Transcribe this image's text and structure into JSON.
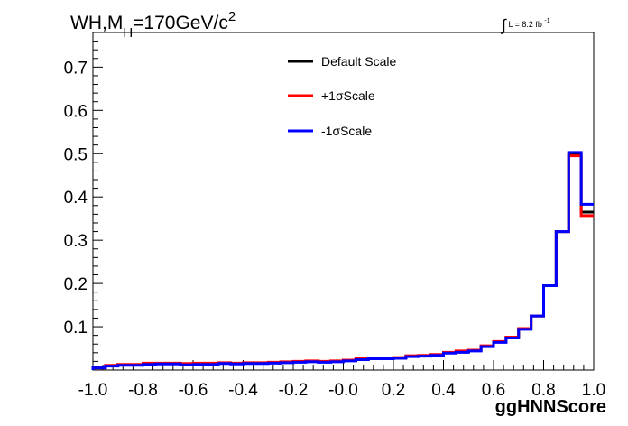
{
  "chart_data": {
    "type": "line",
    "title_parts": {
      "a": "WH,M",
      "sub": "H",
      "b": "=170GeV/c",
      "sup": "2"
    },
    "luminosity_label": {
      "integral": "∫",
      "text": "L = 8.2 fb",
      "sup": "-1"
    },
    "xlabel": "ggHNNScore",
    "ylabel": "",
    "xlim": [
      -1.0,
      1.0
    ],
    "ylim": [
      0,
      0.78
    ],
    "x_ticks": [
      "-1.0",
      "-0.8",
      "-0.6",
      "-0.4",
      "-0.2",
      "-0.0",
      "0.2",
      "0.4",
      "0.6",
      "0.8",
      "1.0"
    ],
    "x_tick_values": [
      -1.0,
      -0.8,
      -0.6,
      -0.4,
      -0.2,
      0.0,
      0.2,
      0.4,
      0.6,
      0.8,
      1.0
    ],
    "y_ticks": [
      "0.1",
      "0.2",
      "0.3",
      "0.4",
      "0.5",
      "0.6",
      "0.7"
    ],
    "y_tick_values": [
      0.1,
      0.2,
      0.3,
      0.4,
      0.5,
      0.6,
      0.7
    ],
    "bin_edges": [
      -1.0,
      -0.95,
      -0.9,
      -0.85,
      -0.8,
      -0.75,
      -0.7,
      -0.65,
      -0.6,
      -0.55,
      -0.5,
      -0.45,
      -0.4,
      -0.35,
      -0.3,
      -0.25,
      -0.2,
      -0.15,
      -0.1,
      -0.05,
      0.0,
      0.05,
      0.1,
      0.15,
      0.2,
      0.25,
      0.3,
      0.35,
      0.4,
      0.45,
      0.5,
      0.55,
      0.6,
      0.65,
      0.7,
      0.75,
      0.8,
      0.85,
      0.9,
      0.95,
      1.0
    ],
    "legend_position": "top-center",
    "series": [
      {
        "name": "Default Scale",
        "color": "#000000",
        "values": [
          0.005,
          0.01,
          0.012,
          0.012,
          0.014,
          0.015,
          0.015,
          0.013,
          0.014,
          0.014,
          0.016,
          0.015,
          0.016,
          0.016,
          0.017,
          0.018,
          0.019,
          0.02,
          0.019,
          0.02,
          0.022,
          0.025,
          0.027,
          0.027,
          0.028,
          0.032,
          0.033,
          0.035,
          0.04,
          0.042,
          0.045,
          0.055,
          0.065,
          0.075,
          0.095,
          0.125,
          0.195,
          0.32,
          0.5,
          0.365
        ]
      },
      {
        "name": "+1σScale",
        "color": "#ff0000",
        "values": [
          0.005,
          0.011,
          0.013,
          0.013,
          0.016,
          0.016,
          0.016,
          0.015,
          0.016,
          0.016,
          0.017,
          0.016,
          0.017,
          0.017,
          0.018,
          0.019,
          0.02,
          0.021,
          0.02,
          0.021,
          0.023,
          0.026,
          0.028,
          0.028,
          0.029,
          0.033,
          0.034,
          0.036,
          0.041,
          0.044,
          0.046,
          0.056,
          0.066,
          0.076,
          0.096,
          0.125,
          0.195,
          0.32,
          0.495,
          0.357
        ]
      },
      {
        "name": "-1σScale",
        "color": "#0000ff",
        "values": [
          0.005,
          0.009,
          0.011,
          0.011,
          0.013,
          0.014,
          0.014,
          0.012,
          0.013,
          0.013,
          0.015,
          0.014,
          0.015,
          0.015,
          0.016,
          0.017,
          0.018,
          0.019,
          0.018,
          0.019,
          0.021,
          0.024,
          0.026,
          0.026,
          0.027,
          0.031,
          0.032,
          0.034,
          0.039,
          0.041,
          0.044,
          0.054,
          0.064,
          0.074,
          0.094,
          0.125,
          0.195,
          0.32,
          0.503,
          0.383
        ]
      }
    ],
    "grid": false
  }
}
